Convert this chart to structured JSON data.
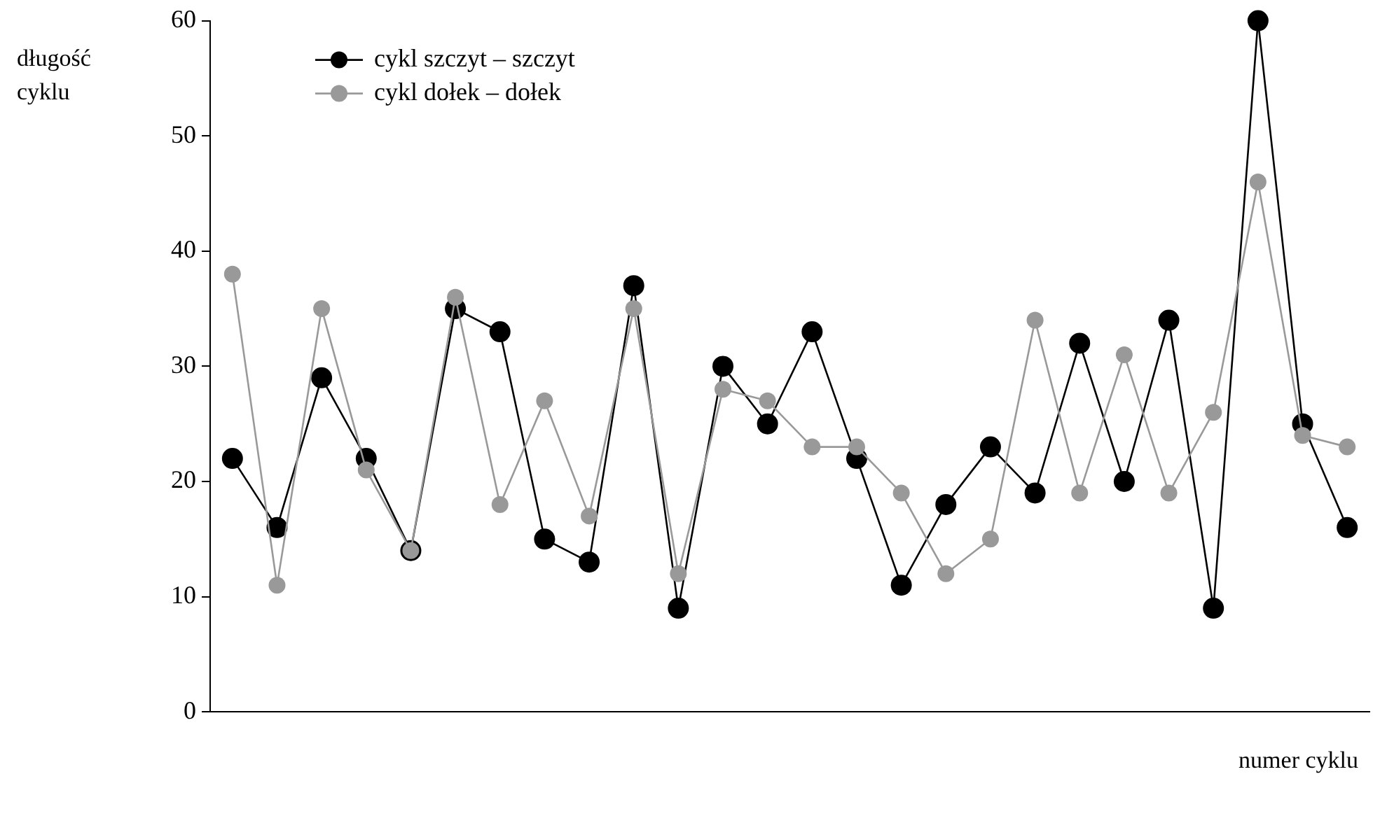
{
  "chart_data": {
    "type": "line",
    "xlabel": "numer cyklu",
    "ylabel": "długość cyklu",
    "categories": [
      null,
      null,
      null,
      null,
      null,
      null,
      null,
      null,
      null,
      null,
      null,
      null,
      null,
      null,
      null,
      null,
      null,
      null,
      null,
      null,
      null,
      null,
      null,
      null,
      null,
      null
    ],
    "series": [
      {
        "name": "cykl szczyt – szczyt",
        "color": "#000000",
        "values": [
          22,
          16,
          29,
          22,
          14,
          35,
          33,
          15,
          13,
          37,
          9,
          30,
          25,
          33,
          22,
          11,
          18,
          23,
          19,
          32,
          20,
          34,
          9,
          60,
          25,
          16
        ]
      },
      {
        "name": "cykl dołek – dołek",
        "color": "#999999",
        "values": [
          38,
          11,
          35,
          21,
          14,
          36,
          18,
          27,
          17,
          35,
          12,
          28,
          27,
          23,
          23,
          19,
          12,
          15,
          34,
          19,
          31,
          19,
          26,
          46,
          24,
          23
        ]
      }
    ],
    "ylim": [
      0,
      60
    ],
    "yticks": [
      0,
      10,
      20,
      30,
      40,
      50,
      60
    ],
    "grid": false,
    "legend": "top left",
    "marker": "circle",
    "line_style": "solid"
  }
}
